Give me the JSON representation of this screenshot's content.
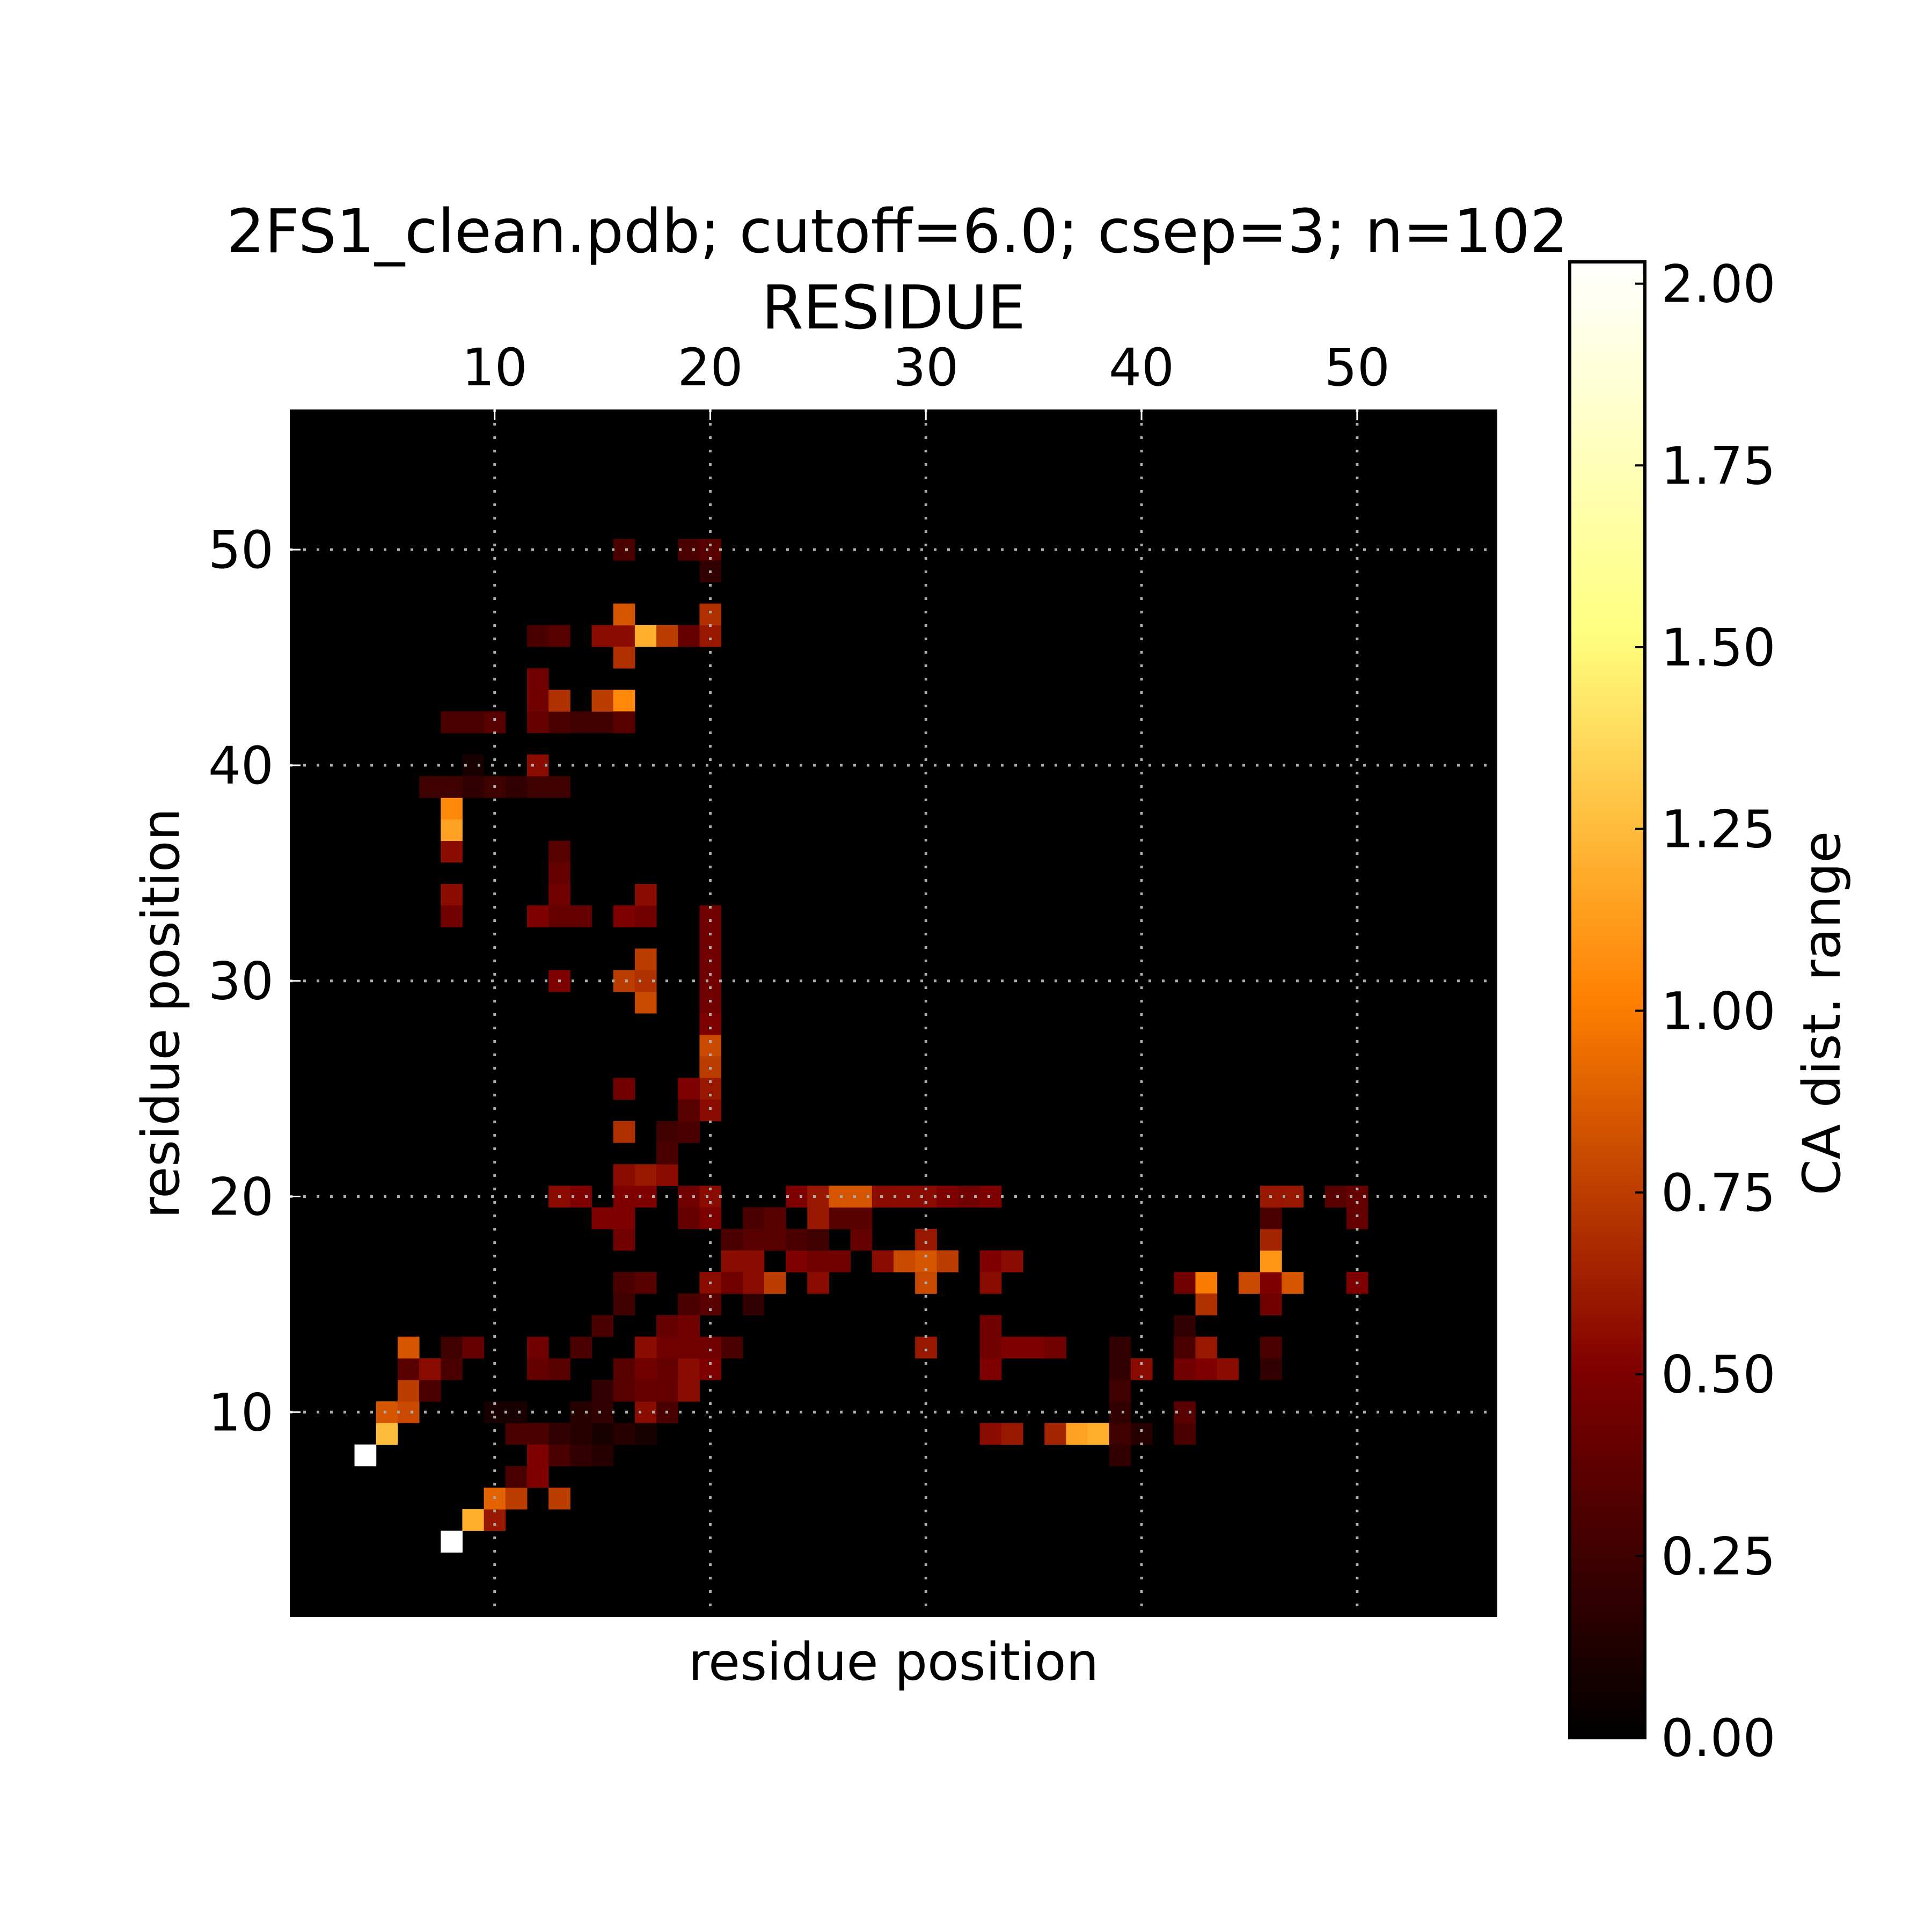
{
  "chart_data": {
    "type": "heatmap",
    "title": "2FS1_clean.pdb; cutoff=6.0; csep=3; n=102",
    "x_label_top": "RESIDUE",
    "xlabel": "residue position",
    "ylabel": "residue position",
    "x_ticks": [
      "10",
      "20",
      "30",
      "40",
      "50"
    ],
    "y_ticks": [
      "10",
      "20",
      "30",
      "40",
      "50"
    ],
    "xlim": [
      0.5,
      56.5
    ],
    "ylim": [
      0.5,
      56.5
    ],
    "grid": true,
    "colormap": "afmhot",
    "colorbar": {
      "label": "CA dist. range",
      "vmin": 0,
      "vmax": 2.03,
      "ticks": [
        "0.00",
        "0.25",
        "0.50",
        "0.75",
        "1.00",
        "1.25",
        "1.50",
        "1.75",
        "2.00"
      ]
    },
    "cells": [
      [
        4,
        8,
        2.03
      ],
      [
        5,
        9,
        1.25
      ],
      [
        5,
        10,
        0.85
      ],
      [
        6,
        10,
        0.8
      ],
      [
        6,
        11,
        0.75
      ],
      [
        6,
        12,
        0.35
      ],
      [
        6,
        13,
        0.85
      ],
      [
        7,
        11,
        0.3
      ],
      [
        7,
        12,
        0.55
      ],
      [
        8,
        12,
        0.3
      ],
      [
        8,
        13,
        0.25
      ],
      [
        9,
        13,
        0.4
      ],
      [
        8,
        4,
        2.03
      ],
      [
        9,
        5,
        1.2
      ],
      [
        10,
        5,
        0.6
      ],
      [
        10,
        6,
        0.9
      ],
      [
        11,
        6,
        0.75
      ],
      [
        11,
        7,
        0.3
      ],
      [
        12,
        7,
        0.5
      ],
      [
        12,
        8,
        0.5
      ],
      [
        13,
        8,
        0.3
      ],
      [
        13,
        6,
        0.75
      ],
      [
        13,
        9,
        0.2
      ],
      [
        14,
        9,
        0.15
      ],
      [
        14,
        10,
        0.15
      ],
      [
        15,
        10,
        0.2
      ],
      [
        15,
        11,
        0.2
      ],
      [
        16,
        11,
        0.35
      ],
      [
        16,
        12,
        0.35
      ],
      [
        17,
        12,
        0.55
      ],
      [
        17,
        13,
        0.5
      ],
      [
        18,
        13,
        0.4
      ],
      [
        18,
        14,
        0.4
      ],
      [
        19,
        14,
        0.5
      ],
      [
        19,
        15,
        0.35
      ],
      [
        20,
        15,
        0.4
      ],
      [
        20,
        16,
        0.3
      ],
      [
        21,
        16,
        0.6
      ],
      [
        21,
        17,
        0.55
      ],
      [
        22,
        17,
        0.35
      ],
      [
        23,
        16,
        0.7
      ],
      [
        24,
        17,
        0.6
      ],
      [
        25,
        17,
        0.45
      ],
      [
        26,
        17,
        0.45
      ],
      [
        27,
        18,
        0.4
      ],
      [
        28,
        17,
        0.55
      ],
      [
        29,
        17,
        0.5
      ],
      [
        30,
        18,
        0.6
      ],
      [
        17,
        10,
        0.55
      ],
      [
        15,
        9,
        0.1
      ],
      [
        16,
        9,
        0.15
      ],
      [
        17,
        9,
        0.1
      ],
      [
        14,
        8,
        0.2
      ],
      [
        15,
        8,
        0.15
      ],
      [
        11,
        9,
        0.3
      ],
      [
        12,
        9,
        0.3
      ],
      [
        10,
        10,
        0.1
      ],
      [
        11,
        10,
        0.1
      ],
      [
        18,
        10,
        0.3
      ],
      [
        18,
        11,
        0.4
      ],
      [
        19,
        11,
        0.55
      ],
      [
        19,
        12,
        0.55
      ],
      [
        20,
        12,
        0.5
      ],
      [
        20,
        13,
        0.35
      ],
      [
        21,
        13,
        0.3
      ],
      [
        22,
        15,
        0.2
      ],
      [
        22,
        16,
        0.3
      ],
      [
        23,
        16,
        0.3
      ],
      [
        24,
        17,
        0.5
      ],
      [
        25,
        18,
        0.45
      ],
      [
        26,
        19,
        0.35
      ],
      [
        27,
        19,
        0.35
      ],
      [
        28,
        20,
        0.45
      ],
      [
        12,
        12,
        0.4
      ],
      [
        12,
        13,
        0.45
      ],
      [
        13,
        12,
        0.35
      ],
      [
        14,
        13,
        0.3
      ],
      [
        15,
        14,
        0.3
      ],
      [
        16,
        15,
        0.25
      ],
      [
        16,
        16,
        0.3
      ],
      [
        17,
        16,
        0.35
      ],
      [
        17,
        11,
        0.4
      ],
      [
        17,
        12,
        0.45
      ],
      [
        18,
        12,
        0.4
      ],
      [
        19,
        13,
        0.35
      ],
      [
        20,
        13,
        0.45
      ],
      [
        15,
        19,
        0.5
      ],
      [
        16,
        19,
        0.5
      ],
      [
        17,
        20,
        0.5
      ],
      [
        17,
        21,
        0.6
      ],
      [
        18,
        21,
        0.55
      ],
      [
        13,
        20,
        0.55
      ],
      [
        14,
        20,
        0.5
      ],
      [
        15,
        19,
        0.5
      ],
      [
        16,
        18,
        0.45
      ],
      [
        16,
        20,
        0.5
      ],
      [
        16,
        21,
        0.55
      ],
      [
        17,
        20,
        0.5
      ],
      [
        19,
        19,
        0.4
      ],
      [
        19,
        20,
        0.45
      ],
      [
        20,
        20,
        0.55
      ],
      [
        20,
        19,
        0.5
      ],
      [
        21,
        18,
        0.3
      ],
      [
        22,
        18,
        0.35
      ],
      [
        23,
        18,
        0.35
      ],
      [
        24,
        18,
        0.3
      ],
      [
        25,
        18,
        0.25
      ],
      [
        22,
        19,
        0.3
      ],
      [
        23,
        19,
        0.35
      ],
      [
        24,
        20,
        0.5
      ],
      [
        25,
        20,
        0.6
      ],
      [
        26,
        20,
        0.85
      ],
      [
        27,
        20,
        0.85
      ],
      [
        28,
        20,
        0.55
      ],
      [
        29,
        20,
        0.55
      ],
      [
        30,
        20,
        0.55
      ],
      [
        31,
        20,
        0.5
      ],
      [
        32,
        20,
        0.45
      ],
      [
        33,
        20,
        0.5
      ],
      [
        25,
        19,
        0.6
      ],
      [
        21,
        17,
        0.55
      ],
      [
        22,
        17,
        0.55
      ],
      [
        21,
        16,
        0.45
      ],
      [
        22,
        16,
        0.55
      ],
      [
        23,
        16,
        0.75
      ],
      [
        25,
        16,
        0.55
      ],
      [
        29,
        17,
        0.8
      ],
      [
        30,
        17,
        0.85
      ],
      [
        30,
        16,
        0.8
      ],
      [
        31,
        17,
        0.75
      ],
      [
        33,
        17,
        0.5
      ],
      [
        34,
        17,
        0.55
      ],
      [
        33,
        16,
        0.55
      ],
      [
        20,
        16,
        0.55
      ],
      [
        20,
        15,
        0.35
      ],
      [
        19,
        15,
        0.3
      ],
      [
        19,
        14,
        0.45
      ],
      [
        18,
        14,
        0.4
      ],
      [
        18,
        13,
        0.45
      ],
      [
        17,
        13,
        0.55
      ],
      [
        19,
        13,
        0.45
      ],
      [
        17,
        12,
        0.45
      ],
      [
        30,
        13,
        0.6
      ],
      [
        33,
        12,
        0.5
      ],
      [
        33,
        13,
        0.45
      ],
      [
        34,
        13,
        0.5
      ],
      [
        35,
        13,
        0.5
      ],
      [
        36,
        13,
        0.45
      ],
      [
        33,
        14,
        0.45
      ],
      [
        33,
        9,
        0.55
      ],
      [
        34,
        9,
        0.6
      ],
      [
        36,
        9,
        0.65
      ],
      [
        37,
        9,
        1.15
      ],
      [
        38,
        9,
        1.2
      ],
      [
        39,
        9,
        0.25
      ],
      [
        39,
        8,
        0.2
      ],
      [
        39,
        10,
        0.2
      ],
      [
        39,
        11,
        0.25
      ],
      [
        39,
        12,
        0.2
      ],
      [
        39,
        13,
        0.2
      ],
      [
        40,
        9,
        0.15
      ],
      [
        40,
        12,
        0.55
      ],
      [
        42,
        9,
        0.3
      ],
      [
        42,
        10,
        0.35
      ],
      [
        42,
        12,
        0.45
      ],
      [
        43,
        12,
        0.5
      ],
      [
        44,
        12,
        0.55
      ],
      [
        42,
        13,
        0.3
      ],
      [
        43,
        13,
        0.6
      ],
      [
        42,
        14,
        0.2
      ],
      [
        42,
        16,
        0.45
      ],
      [
        43,
        16,
        1.0
      ],
      [
        43,
        15,
        0.7
      ],
      [
        45,
        16,
        0.8
      ],
      [
        46,
        16,
        0.5
      ],
      [
        46,
        17,
        1.1
      ],
      [
        46,
        15,
        0.45
      ],
      [
        47,
        16,
        0.85
      ],
      [
        46,
        18,
        0.65
      ],
      [
        46,
        19,
        0.3
      ],
      [
        46,
        20,
        0.6
      ],
      [
        47,
        20,
        0.6
      ],
      [
        49,
        20,
        0.35
      ],
      [
        50,
        20,
        0.4
      ],
      [
        50,
        19,
        0.4
      ],
      [
        50,
        16,
        0.5
      ],
      [
        46,
        13,
        0.3
      ],
      [
        46,
        12,
        0.2
      ],
      [
        8,
        36,
        0.55
      ],
      [
        8,
        37,
        1.15
      ],
      [
        8,
        38,
        1.05
      ],
      [
        8,
        34,
        0.55
      ],
      [
        8,
        33,
        0.45
      ],
      [
        8,
        39,
        0.25
      ],
      [
        7,
        39,
        0.25
      ],
      [
        9,
        39,
        0.2
      ],
      [
        10,
        39,
        0.25
      ],
      [
        11,
        39,
        0.2
      ],
      [
        12,
        39,
        0.25
      ],
      [
        13,
        39,
        0.25
      ],
      [
        9,
        40,
        0.1
      ],
      [
        12,
        40,
        0.55
      ],
      [
        8,
        42,
        0.3
      ],
      [
        9,
        42,
        0.3
      ],
      [
        10,
        42,
        0.35
      ],
      [
        12,
        42,
        0.4
      ],
      [
        12,
        43,
        0.45
      ],
      [
        12,
        44,
        0.45
      ],
      [
        13,
        42,
        0.3
      ],
      [
        13,
        43,
        0.7
      ],
      [
        14,
        42,
        0.25
      ],
      [
        15,
        42,
        0.25
      ],
      [
        15,
        43,
        0.75
      ],
      [
        16,
        43,
        1.05
      ],
      [
        16,
        42,
        0.35
      ],
      [
        13,
        36,
        0.35
      ],
      [
        13,
        35,
        0.4
      ],
      [
        13,
        34,
        0.45
      ],
      [
        12,
        33,
        0.5
      ],
      [
        13,
        33,
        0.4
      ],
      [
        14,
        33,
        0.4
      ],
      [
        16,
        33,
        0.5
      ],
      [
        17,
        33,
        0.45
      ],
      [
        17,
        34,
        0.55
      ],
      [
        13,
        30,
        0.5
      ],
      [
        16,
        30,
        0.75
      ],
      [
        17,
        30,
        0.7
      ],
      [
        17,
        31,
        0.75
      ],
      [
        17,
        29,
        0.8
      ],
      [
        16,
        25,
        0.45
      ],
      [
        16,
        23,
        0.7
      ],
      [
        20,
        33,
        0.45
      ],
      [
        20,
        32,
        0.45
      ],
      [
        20,
        31,
        0.45
      ],
      [
        20,
        30,
        0.45
      ],
      [
        20,
        29,
        0.45
      ],
      [
        20,
        28,
        0.5
      ],
      [
        20,
        27,
        0.8
      ],
      [
        20,
        26,
        0.75
      ],
      [
        20,
        25,
        0.6
      ],
      [
        20,
        24,
        0.55
      ],
      [
        19,
        25,
        0.5
      ],
      [
        19,
        24,
        0.35
      ],
      [
        18,
        23,
        0.25
      ],
      [
        19,
        23,
        0.3
      ],
      [
        18,
        22,
        0.3
      ],
      [
        12,
        46,
        0.3
      ],
      [
        13,
        46,
        0.35
      ],
      [
        15,
        46,
        0.55
      ],
      [
        16,
        46,
        0.55
      ],
      [
        17,
        46,
        1.2
      ],
      [
        18,
        46,
        0.75
      ],
      [
        19,
        46,
        0.4
      ],
      [
        20,
        46,
        0.6
      ],
      [
        20,
        47,
        0.7
      ],
      [
        16,
        47,
        0.85
      ],
      [
        16,
        45,
        0.7
      ],
      [
        16,
        50,
        0.3
      ],
      [
        19,
        50,
        0.3
      ],
      [
        20,
        50,
        0.35
      ],
      [
        20,
        49,
        0.2
      ]
    ]
  }
}
